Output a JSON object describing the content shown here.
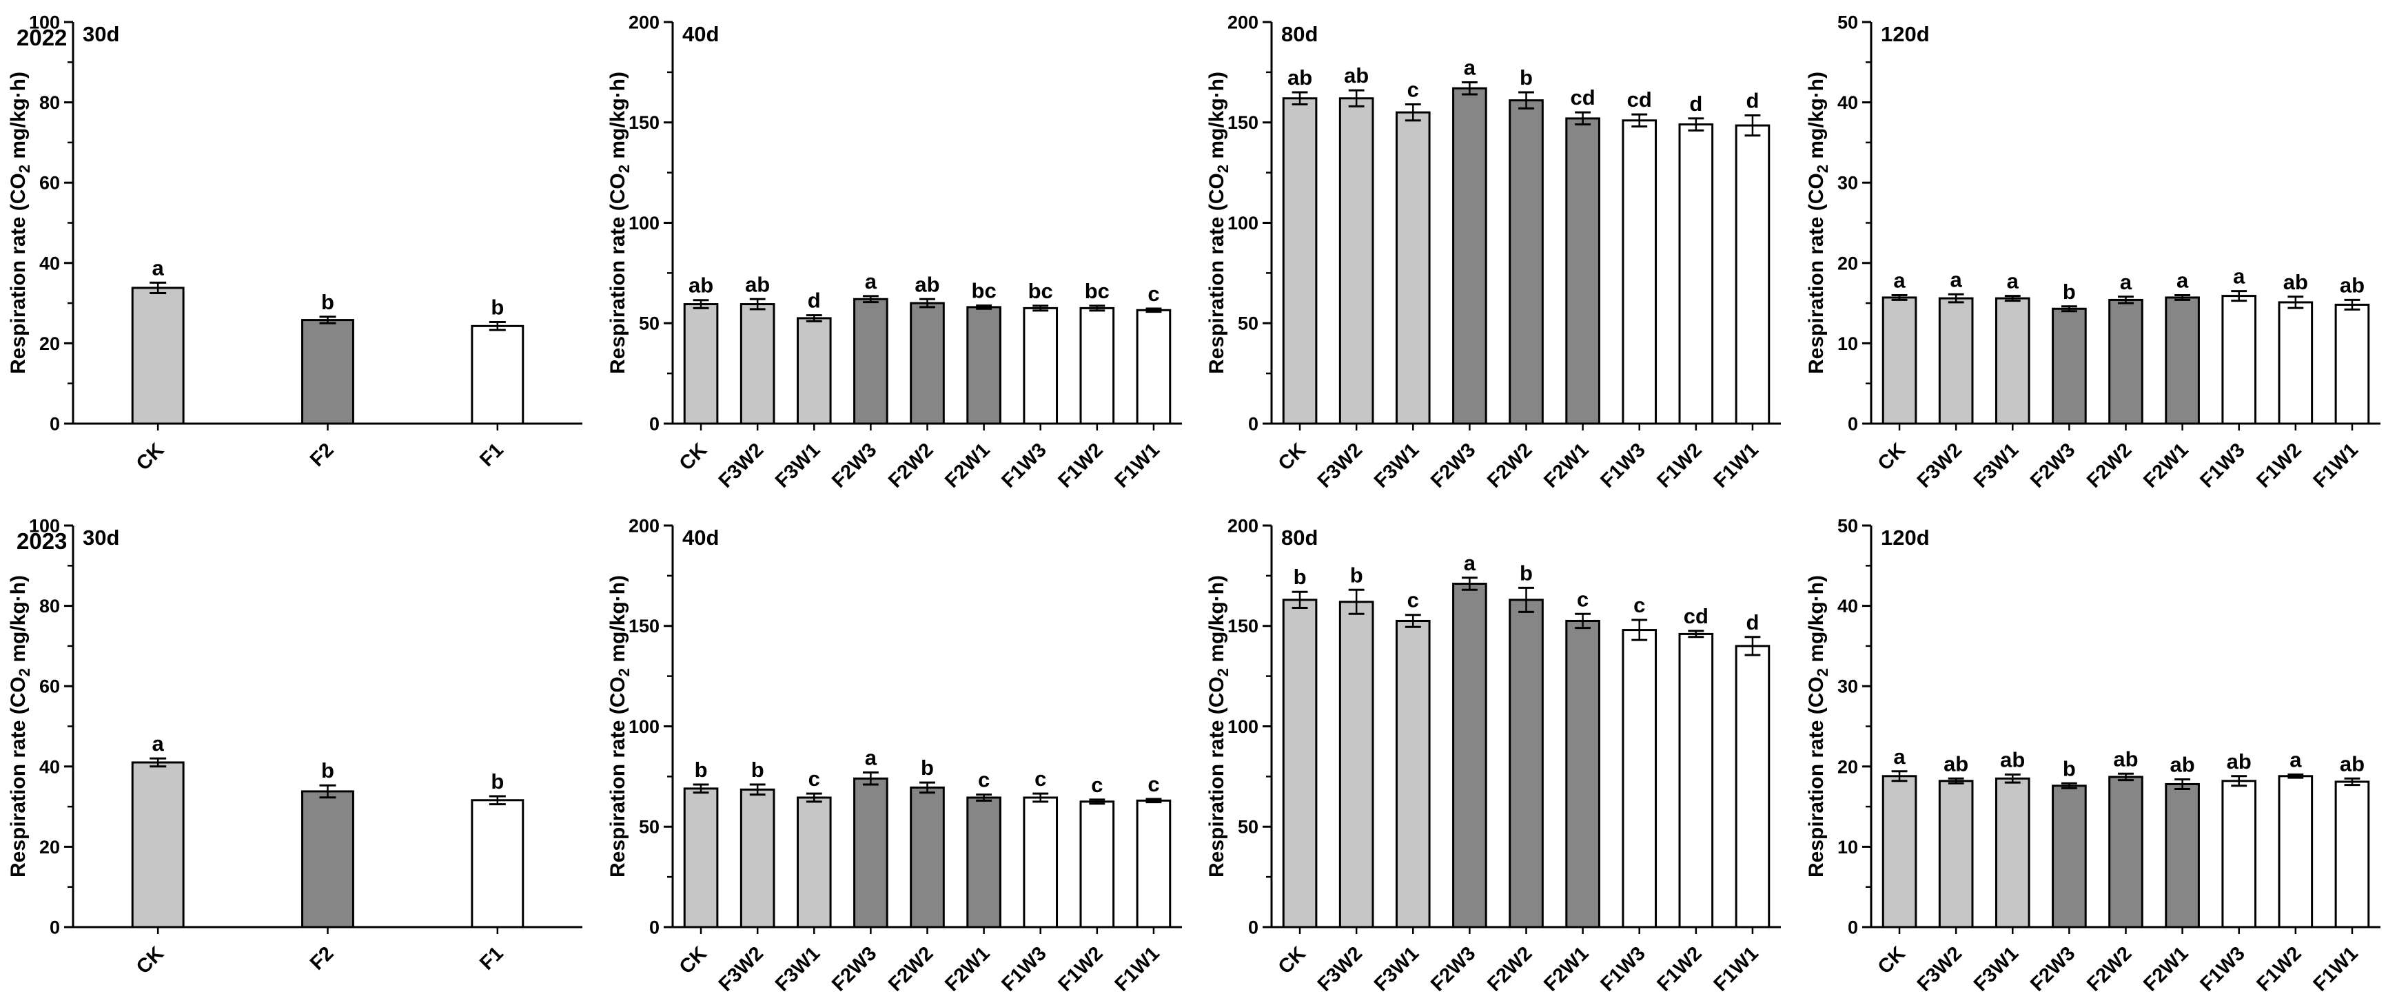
{
  "figure": {
    "background": "#ffffff",
    "row_labels": [
      "2022",
      "2023"
    ],
    "ylabel_parts": {
      "pre": "Respiration rate (CO",
      "sub": "2",
      "post": " mg/kg·h)"
    },
    "palette": {
      "light_gray": "#c6c6c6",
      "dark_gray": "#868686",
      "white": "#ffffff",
      "stroke": "#000000",
      "text": "#000000"
    }
  },
  "chart_data": [
    {
      "id": "2022-30d",
      "type": "bar",
      "year_label": "2022",
      "panel_label": "30d",
      "ylabel": "Respiration rate (CO2 mg/kg·h)",
      "ylim": [
        0,
        100
      ],
      "ytick_major": 20,
      "ytick_minor": 10,
      "grid": false,
      "categories": [
        "CK",
        "F2",
        "F1"
      ],
      "values": [
        33.8,
        25.8,
        24.3
      ],
      "errors": [
        1.3,
        0.8,
        1.0
      ],
      "sig_letters": [
        "a",
        "b",
        "b"
      ],
      "bar_fill_keys": [
        "light_gray",
        "dark_gray",
        "white"
      ]
    },
    {
      "id": "2022-40d",
      "type": "bar",
      "year_label": "",
      "panel_label": "40d",
      "ylabel": "Respiration rate (CO2 mg/kg·h)",
      "ylim": [
        0,
        200
      ],
      "ytick_major": 50,
      "ytick_minor": 25,
      "grid": false,
      "categories": [
        "CK",
        "F3W2",
        "F3W1",
        "F2W3",
        "F2W2",
        "F2W1",
        "F1W3",
        "F1W2",
        "F1W1"
      ],
      "values": [
        59.5,
        59.5,
        52.5,
        62,
        60,
        58,
        57.5,
        57.5,
        56.5
      ],
      "errors": [
        2.0,
        2.5,
        1.5,
        1.5,
        2.0,
        0.8,
        1.2,
        1.2,
        0.8
      ],
      "sig_letters": [
        "ab",
        "ab",
        "d",
        "a",
        "ab",
        "bc",
        "bc",
        "bc",
        "c"
      ],
      "bar_fill_keys": [
        "light_gray",
        "light_gray",
        "light_gray",
        "dark_gray",
        "dark_gray",
        "dark_gray",
        "white",
        "white",
        "white"
      ]
    },
    {
      "id": "2022-80d",
      "type": "bar",
      "year_label": "",
      "panel_label": "80d",
      "ylabel": "Respiration rate (CO2 mg/kg·h)",
      "ylim": [
        0,
        200
      ],
      "ytick_major": 50,
      "ytick_minor": 25,
      "grid": false,
      "categories": [
        "CK",
        "F3W2",
        "F3W1",
        "F2W3",
        "F2W2",
        "F2W1",
        "F1W3",
        "F1W2",
        "F1W1"
      ],
      "values": [
        162,
        162,
        155,
        167,
        161,
        152,
        151,
        149,
        148.5
      ],
      "errors": [
        3,
        4,
        4,
        3,
        4,
        3,
        3,
        3,
        5
      ],
      "sig_letters": [
        "ab",
        "ab",
        "c",
        "a",
        "b",
        "cd",
        "cd",
        "d",
        "d"
      ],
      "bar_fill_keys": [
        "light_gray",
        "light_gray",
        "light_gray",
        "dark_gray",
        "dark_gray",
        "dark_gray",
        "white",
        "white",
        "white"
      ]
    },
    {
      "id": "2022-120d",
      "type": "bar",
      "year_label": "",
      "panel_label": "120d",
      "ylabel": "Respiration rate (CO2 mg/kg·h)",
      "ylim": [
        0,
        50
      ],
      "ytick_major": 10,
      "ytick_minor": 5,
      "grid": false,
      "categories": [
        "CK",
        "F3W2",
        "F3W1",
        "F2W3",
        "F2W2",
        "F2W1",
        "F1W3",
        "F1W2",
        "F1W1"
      ],
      "values": [
        15.7,
        15.6,
        15.6,
        14.3,
        15.4,
        15.7,
        15.9,
        15.1,
        14.8
      ],
      "errors": [
        0.3,
        0.5,
        0.3,
        0.3,
        0.4,
        0.3,
        0.6,
        0.7,
        0.6
      ],
      "sig_letters": [
        "a",
        "a",
        "a",
        "b",
        "a",
        "a",
        "a",
        "ab",
        "ab"
      ],
      "bar_fill_keys": [
        "light_gray",
        "light_gray",
        "light_gray",
        "dark_gray",
        "dark_gray",
        "dark_gray",
        "white",
        "white",
        "white"
      ]
    },
    {
      "id": "2023-30d",
      "type": "bar",
      "year_label": "2023",
      "panel_label": "30d",
      "ylabel": "Respiration rate (CO2 mg/kg·h)",
      "ylim": [
        0,
        100
      ],
      "ytick_major": 20,
      "ytick_minor": 10,
      "grid": false,
      "categories": [
        "CK",
        "F2",
        "F1"
      ],
      "values": [
        41.0,
        33.8,
        31.6
      ],
      "errors": [
        1.0,
        1.5,
        1.0
      ],
      "sig_letters": [
        "a",
        "b",
        "b"
      ],
      "bar_fill_keys": [
        "light_gray",
        "dark_gray",
        "white"
      ]
    },
    {
      "id": "2023-40d",
      "type": "bar",
      "year_label": "",
      "panel_label": "40d",
      "ylabel": "Respiration rate (CO2 mg/kg·h)",
      "ylim": [
        0,
        200
      ],
      "ytick_major": 50,
      "ytick_minor": 25,
      "grid": false,
      "categories": [
        "CK",
        "F3W2",
        "F3W1",
        "F2W3",
        "F2W2",
        "F2W1",
        "F1W3",
        "F1W2",
        "F1W1"
      ],
      "values": [
        69,
        68.5,
        64.5,
        74,
        69.5,
        64.5,
        64.5,
        62.5,
        63
      ],
      "errors": [
        2.0,
        2.5,
        2.0,
        3.0,
        2.5,
        1.5,
        2.0,
        1.0,
        0.8
      ],
      "sig_letters": [
        "b",
        "b",
        "c",
        "a",
        "b",
        "c",
        "c",
        "c",
        "c"
      ],
      "bar_fill_keys": [
        "light_gray",
        "light_gray",
        "light_gray",
        "dark_gray",
        "dark_gray",
        "dark_gray",
        "white",
        "white",
        "white"
      ]
    },
    {
      "id": "2023-80d",
      "type": "bar",
      "year_label": "",
      "panel_label": "80d",
      "ylabel": "Respiration rate (CO2 mg/kg·h)",
      "ylim": [
        0,
        200
      ],
      "ytick_major": 50,
      "ytick_minor": 25,
      "grid": false,
      "categories": [
        "CK",
        "F3W2",
        "F3W1",
        "F2W3",
        "F2W2",
        "F2W1",
        "F1W3",
        "F1W2",
        "F1W1"
      ],
      "values": [
        163,
        162,
        152.5,
        171,
        163,
        152.5,
        148,
        146,
        140
      ],
      "errors": [
        4,
        6,
        3,
        3,
        6,
        3.5,
        5,
        1.5,
        4.5
      ],
      "sig_letters": [
        "b",
        "b",
        "c",
        "a",
        "b",
        "c",
        "c",
        "cd",
        "d"
      ],
      "bar_fill_keys": [
        "light_gray",
        "light_gray",
        "light_gray",
        "dark_gray",
        "dark_gray",
        "dark_gray",
        "white",
        "white",
        "white"
      ]
    },
    {
      "id": "2023-120d",
      "type": "bar",
      "year_label": "",
      "panel_label": "120d",
      "ylabel": "Respiration rate (CO2 mg/kg·h)",
      "ylim": [
        0,
        50
      ],
      "ytick_major": 10,
      "ytick_minor": 5,
      "grid": false,
      "categories": [
        "CK",
        "F3W2",
        "F3W1",
        "F2W3",
        "F2W2",
        "F2W1",
        "F1W3",
        "F1W2",
        "F1W1"
      ],
      "values": [
        18.8,
        18.2,
        18.5,
        17.6,
        18.7,
        17.8,
        18.2,
        18.8,
        18.1
      ],
      "errors": [
        0.6,
        0.3,
        0.5,
        0.3,
        0.4,
        0.6,
        0.6,
        0.2,
        0.4
      ],
      "sig_letters": [
        "a",
        "ab",
        "ab",
        "b",
        "ab",
        "ab",
        "ab",
        "a",
        "ab"
      ],
      "bar_fill_keys": [
        "light_gray",
        "light_gray",
        "light_gray",
        "dark_gray",
        "dark_gray",
        "dark_gray",
        "white",
        "white",
        "white"
      ]
    }
  ]
}
